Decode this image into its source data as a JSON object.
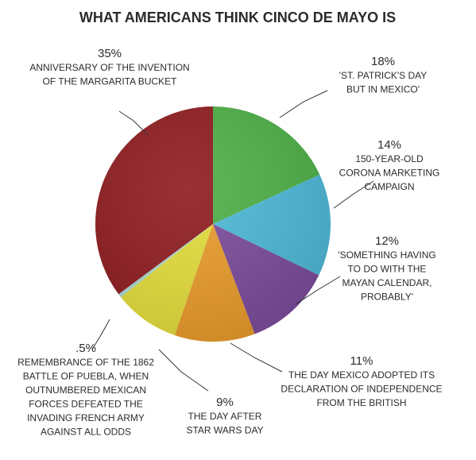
{
  "chart_data": {
    "type": "pie",
    "title": "WHAT AMERICANS THINK CINCO DE MAYO IS",
    "slices": [
      {
        "pct_label": "18%",
        "value": 18,
        "label_lines": [
          "'ST. PATRICK'S DAY",
          "BUT IN MEXICO'"
        ],
        "color": "#4caf46"
      },
      {
        "pct_label": "14%",
        "value": 14,
        "label_lines": [
          "150-YEAR-OLD",
          "CORONA MARKETING",
          "CAMPAIGN"
        ],
        "color": "#4cb8d6"
      },
      {
        "pct_label": "12%",
        "value": 12,
        "label_lines": [
          "'SOMETHING HAVING",
          "TO DO WITH THE",
          "MAYAN CALENDAR,",
          "PROBABLY'"
        ],
        "color": "#7a4a9a"
      },
      {
        "pct_label": "11%",
        "value": 11,
        "label_lines": [
          "THE DAY MEXICO ADOPTED ITS",
          "DECLARATION OF INDEPENDENCE",
          "FROM THE BRITISH"
        ],
        "color": "#e89a2a"
      },
      {
        "pct_label": "9%",
        "value": 9,
        "label_lines": [
          "THE DAY AFTER",
          "STAR WARS DAY"
        ],
        "color": "#e2dc3a"
      },
      {
        "pct_label": ".5%",
        "value": 0.5,
        "label_lines": [
          "REMEMBRANCE OF THE 1862",
          "BATTLE OF PUEBLA, WHEN",
          "OUTNUMBERED MEXICAN",
          "FORCES DEFEATED THE",
          "INVADING FRENCH ARMY",
          "AGAINST ALL ODDS"
        ],
        "color": "#a9d6cf"
      },
      {
        "pct_label": "35%",
        "value": 35,
        "label_lines": [
          "ANNIVERSARY OF THE INVENTION",
          "OF THE MARGARITA BUCKET"
        ],
        "color": "#8e1b1e"
      }
    ]
  }
}
